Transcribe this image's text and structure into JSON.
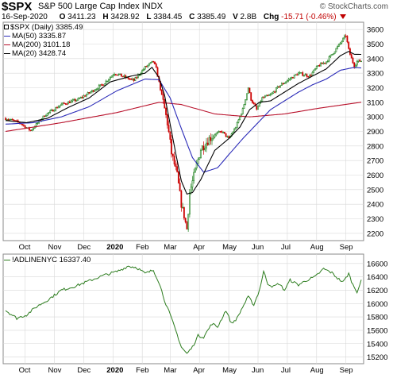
{
  "header": {
    "symbol": "$SPX",
    "name": "S&P 500 Large Cap Index",
    "exchange": "INDX",
    "brand": "© StockCharts.com",
    "date": "16-Sep-2020",
    "open_label": "O",
    "open": "3411.23",
    "high_label": "H",
    "high": "3428.92",
    "low_label": "L",
    "low": "3384.45",
    "close_label": "C",
    "close": "3385.49",
    "volume_label": "V",
    "volume": "2.8B",
    "change_label": "Chg",
    "change": "-15.71 (-0.46%)"
  },
  "legend_top": {
    "price": "$SPX (Daily) 3385.49",
    "ma50": "MA(50) 3335.87",
    "ma200": "MA(200) 3101.18",
    "ma20": "MA(20) 3428.74"
  },
  "legend_bottom": {
    "indicator": "!ADLINENYC 16337.40"
  },
  "colors": {
    "up": "#1a7f1a",
    "down": "#cc0000",
    "ma50": "#2b2bb8",
    "ma200": "#b8102a",
    "ma20": "#000000",
    "adline": "#2d7d1f",
    "grid": "#d8d8d8",
    "border": "#8a8a8a"
  },
  "chart_data": [
    {
      "type": "candlestick",
      "title": "$SPX (Daily) 3385.49",
      "ylim": [
        2150,
        3650
      ],
      "y_ticks": [
        2200,
        2300,
        2400,
        2500,
        2600,
        2700,
        2800,
        2900,
        3000,
        3100,
        3200,
        3300,
        3400,
        3500,
        3600
      ],
      "x_tick_labels": [
        "Oct",
        "Nov",
        "Dec",
        "2020",
        "Feb",
        "Mar",
        "Apr",
        "May",
        "Jun",
        "Jul",
        "Aug",
        "Sep"
      ],
      "x_tick_days": [
        14,
        35,
        56,
        77,
        98,
        118,
        139,
        160,
        181,
        202,
        223,
        244
      ],
      "price_close_anchors": [
        [
          0,
          2990
        ],
        [
          10,
          2960
        ],
        [
          18,
          2905
        ],
        [
          28,
          3010
        ],
        [
          40,
          3085
        ],
        [
          52,
          3120
        ],
        [
          60,
          3165
        ],
        [
          70,
          3225
        ],
        [
          78,
          3300
        ],
        [
          85,
          3275
        ],
        [
          92,
          3250
        ],
        [
          100,
          3340
        ],
        [
          106,
          3380
        ],
        [
          108,
          3330
        ],
        [
          113,
          3100
        ],
        [
          116,
          2960
        ],
        [
          119,
          2750
        ],
        [
          123,
          2600
        ],
        [
          126,
          2400
        ],
        [
          128,
          2320
        ],
        [
          130,
          2230
        ],
        [
          132,
          2480
        ],
        [
          136,
          2630
        ],
        [
          140,
          2780
        ],
        [
          146,
          2850
        ],
        [
          150,
          2880
        ],
        [
          155,
          2900
        ],
        [
          160,
          2850
        ],
        [
          165,
          2930
        ],
        [
          170,
          3050
        ],
        [
          174,
          3200
        ],
        [
          176,
          3120
        ],
        [
          180,
          3050
        ],
        [
          184,
          3130
        ],
        [
          190,
          3150
        ],
        [
          196,
          3210
        ],
        [
          202,
          3250
        ],
        [
          210,
          3300
        ],
        [
          218,
          3280
        ],
        [
          224,
          3350
        ],
        [
          230,
          3380
        ],
        [
          238,
          3480
        ],
        [
          244,
          3560
        ],
        [
          246,
          3460
        ],
        [
          248,
          3400
        ],
        [
          250,
          3350
        ],
        [
          252,
          3380
        ],
        [
          255,
          3385
        ]
      ],
      "ma20_anchors": [
        [
          0,
          2975
        ],
        [
          15,
          2960
        ],
        [
          30,
          2990
        ],
        [
          45,
          3065
        ],
        [
          60,
          3130
        ],
        [
          75,
          3240
        ],
        [
          90,
          3280
        ],
        [
          100,
          3300
        ],
        [
          105,
          3340
        ],
        [
          110,
          3270
        ],
        [
          114,
          3150
        ],
        [
          118,
          2950
        ],
        [
          122,
          2750
        ],
        [
          126,
          2560
        ],
        [
          130,
          2470
        ],
        [
          134,
          2480
        ],
        [
          140,
          2570
        ],
        [
          150,
          2770
        ],
        [
          160,
          2850
        ],
        [
          168,
          2930
        ],
        [
          175,
          3050
        ],
        [
          182,
          3100
        ],
        [
          190,
          3110
        ],
        [
          200,
          3170
        ],
        [
          210,
          3230
        ],
        [
          220,
          3280
        ],
        [
          230,
          3330
        ],
        [
          240,
          3420
        ],
        [
          246,
          3450
        ],
        [
          250,
          3430
        ],
        [
          255,
          3429
        ]
      ],
      "ma50_anchors": [
        [
          0,
          2950
        ],
        [
          20,
          2960
        ],
        [
          40,
          3000
        ],
        [
          60,
          3070
        ],
        [
          80,
          3180
        ],
        [
          100,
          3260
        ],
        [
          110,
          3255
        ],
        [
          118,
          3130
        ],
        [
          126,
          2920
        ],
        [
          134,
          2720
        ],
        [
          142,
          2620
        ],
        [
          152,
          2650
        ],
        [
          160,
          2740
        ],
        [
          170,
          2850
        ],
        [
          180,
          2950
        ],
        [
          190,
          3050
        ],
        [
          200,
          3110
        ],
        [
          210,
          3170
        ],
        [
          220,
          3220
        ],
        [
          230,
          3260
        ],
        [
          240,
          3320
        ],
        [
          250,
          3340
        ],
        [
          255,
          3336
        ]
      ],
      "ma200_anchors": [
        [
          0,
          2900
        ],
        [
          40,
          2960
        ],
        [
          80,
          3030
        ],
        [
          110,
          3100
        ],
        [
          126,
          3085
        ],
        [
          150,
          3020
        ],
        [
          175,
          3000
        ],
        [
          200,
          3020
        ],
        [
          225,
          3060
        ],
        [
          255,
          3101
        ]
      ]
    },
    {
      "type": "line",
      "title": "!ADLINENYC 16337.40",
      "ylim": [
        15100,
        16740
      ],
      "y_ticks": [
        15200,
        15400,
        15600,
        15800,
        16000,
        16200,
        16400,
        16600
      ],
      "x_tick_labels": [
        "Oct",
        "Nov",
        "Dec",
        "2020",
        "Feb",
        "Mar",
        "Apr",
        "May",
        "Jun",
        "Jul",
        "Aug",
        "Sep"
      ],
      "x_tick_days": [
        14,
        35,
        56,
        77,
        98,
        118,
        139,
        160,
        181,
        202,
        223,
        244
      ],
      "anchors": [
        [
          0,
          15900
        ],
        [
          8,
          15780
        ],
        [
          15,
          15830
        ],
        [
          22,
          15950
        ],
        [
          30,
          16050
        ],
        [
          40,
          16200
        ],
        [
          50,
          16260
        ],
        [
          60,
          16340
        ],
        [
          70,
          16420
        ],
        [
          80,
          16480
        ],
        [
          88,
          16560
        ],
        [
          94,
          16540
        ],
        [
          100,
          16450
        ],
        [
          106,
          16500
        ],
        [
          110,
          16320
        ],
        [
          114,
          16050
        ],
        [
          118,
          15830
        ],
        [
          122,
          15600
        ],
        [
          126,
          15350
        ],
        [
          130,
          15250
        ],
        [
          134,
          15350
        ],
        [
          138,
          15520
        ],
        [
          142,
          15500
        ],
        [
          148,
          15700
        ],
        [
          152,
          15650
        ],
        [
          158,
          15900
        ],
        [
          162,
          15700
        ],
        [
          166,
          15780
        ],
        [
          170,
          15950
        ],
        [
          174,
          16100
        ],
        [
          178,
          15980
        ],
        [
          182,
          16200
        ],
        [
          185,
          16480
        ],
        [
          188,
          16300
        ],
        [
          192,
          16250
        ],
        [
          196,
          16300
        ],
        [
          200,
          16200
        ],
        [
          204,
          16350
        ],
        [
          210,
          16280
        ],
        [
          216,
          16350
        ],
        [
          222,
          16400
        ],
        [
          228,
          16520
        ],
        [
          234,
          16460
        ],
        [
          238,
          16380
        ],
        [
          242,
          16320
        ],
        [
          246,
          16450
        ],
        [
          249,
          16280
        ],
        [
          252,
          16180
        ],
        [
          255,
          16337
        ]
      ]
    }
  ]
}
